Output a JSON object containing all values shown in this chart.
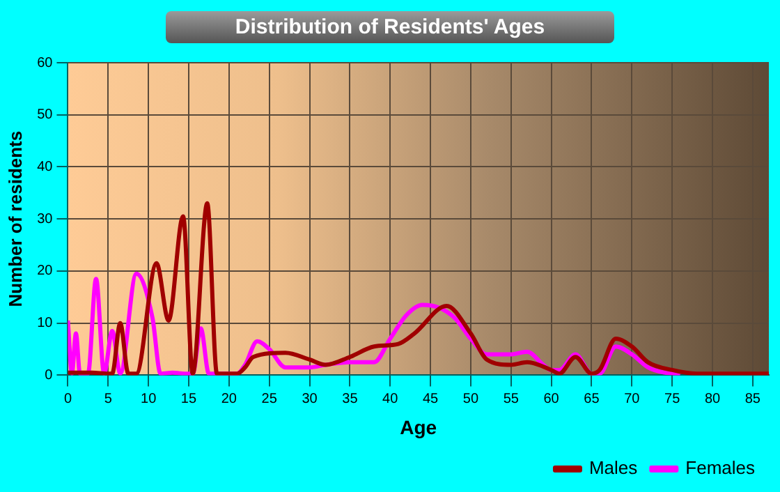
{
  "chart_data": {
    "type": "line",
    "title": "Distribution of Residents' Ages",
    "xlabel": "Age",
    "ylabel": "Number of residents",
    "xlim": [
      0,
      87
    ],
    "xticks": [
      0,
      5,
      10,
      15,
      20,
      25,
      30,
      35,
      40,
      45,
      50,
      55,
      60,
      65,
      70,
      75,
      80,
      85
    ],
    "ylim": [
      0,
      60
    ],
    "yticks": [
      0,
      10,
      20,
      30,
      40,
      50,
      60
    ],
    "grid": true,
    "legend": "bottom right",
    "marker": "none",
    "line_style": "solid",
    "series": [
      {
        "name": "Males",
        "color": "#a00000",
        "x": [
          0,
          3,
          5,
          5.5,
          6.5,
          7.5,
          8.5,
          11,
          12.5,
          14.3,
          15.5,
          17.3,
          18.5,
          20,
          21,
          22,
          23,
          27,
          30,
          32,
          35,
          38,
          41,
          43,
          47,
          50,
          52,
          55,
          57,
          60,
          61,
          63,
          65,
          66,
          68,
          70,
          72,
          75,
          78,
          87
        ],
        "values": [
          0.5,
          0.5,
          0.3,
          0.3,
          10,
          0.3,
          0.3,
          21.5,
          10.5,
          30.5,
          0.3,
          33,
          0.3,
          0.3,
          0.3,
          1.5,
          3.5,
          4.3,
          3,
          2,
          3.5,
          5.5,
          6,
          8,
          13.3,
          8,
          3,
          2,
          2.5,
          1,
          0.3,
          3.5,
          0.3,
          1,
          7,
          5.5,
          2.5,
          1,
          0.3,
          0.3
        ]
      },
      {
        "name": "Females",
        "color": "#ff00ff",
        "x": [
          0,
          0.5,
          1,
          1.5,
          2.5,
          3.5,
          4.5,
          5.5,
          6.5,
          8.5,
          10.5,
          11.5,
          13,
          14.5,
          15.5,
          16.5,
          17.5,
          21,
          22,
          23.5,
          25,
          27,
          30,
          32,
          35,
          38,
          40,
          42,
          44,
          46,
          48,
          50,
          52,
          55,
          57,
          59,
          60,
          61,
          63,
          65,
          66,
          68,
          70,
          72,
          74,
          76
        ],
        "values": [
          10.5,
          0.3,
          8,
          0.3,
          0.3,
          18.5,
          0.3,
          8.5,
          0.3,
          19.5,
          11,
          0.3,
          0.5,
          0.3,
          0.3,
          9,
          0.3,
          0.3,
          2,
          6.5,
          5,
          1.5,
          1.5,
          2,
          2.5,
          2.5,
          7,
          11.5,
          13.5,
          13,
          11,
          7,
          4,
          4,
          4.5,
          2,
          1,
          1,
          4,
          0.3,
          0.3,
          5.5,
          4,
          1.5,
          0.5,
          0.3
        ]
      }
    ]
  }
}
